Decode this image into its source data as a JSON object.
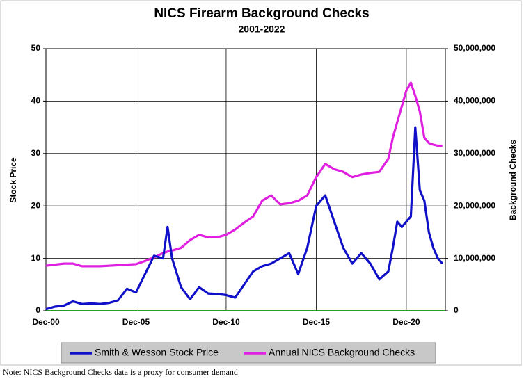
{
  "chart_data": {
    "type": "line",
    "title": "NICS Firearm Background Checks",
    "subtitle": "2001-2022",
    "y_label": "Stock Price",
    "y2_label": "Background Checks",
    "note": "Note: NICS Background Checks data is a proxy for consumer demand",
    "x": [
      "2000-12",
      "2001-06",
      "2001-12",
      "2002-06",
      "2002-12",
      "2003-06",
      "2003-12",
      "2004-06",
      "2004-12",
      "2005-06",
      "2005-12",
      "2006-06",
      "2006-12",
      "2007-06",
      "2007-09",
      "2007-12",
      "2008-06",
      "2008-12",
      "2009-06",
      "2009-12",
      "2010-06",
      "2010-12",
      "2011-06",
      "2011-12",
      "2012-06",
      "2012-12",
      "2013-06",
      "2013-12",
      "2014-06",
      "2014-12",
      "2015-06",
      "2015-12",
      "2016-06",
      "2016-12",
      "2017-06",
      "2017-12",
      "2018-06",
      "2018-12",
      "2019-06",
      "2019-12",
      "2020-03",
      "2020-06",
      "2020-09",
      "2020-12",
      "2021-03",
      "2021-06",
      "2021-09",
      "2021-12",
      "2022-03",
      "2022-06",
      "2022-09",
      "2022-12"
    ],
    "xlim": [
      "2000-12",
      "2023-02"
    ],
    "xticks": [
      {
        "value": "2000-12",
        "label": "Dec-00"
      },
      {
        "value": "2005-12",
        "label": "Dec-05"
      },
      {
        "value": "2010-12",
        "label": "Dec-10"
      },
      {
        "value": "2015-12",
        "label": "Dec-15"
      },
      {
        "value": "2020-12",
        "label": "Dec-20"
      }
    ],
    "ylim": [
      0,
      50
    ],
    "yticks": [
      0,
      10,
      20,
      30,
      40,
      50
    ],
    "y2lim": [
      0,
      50000000
    ],
    "y2ticks": [
      0,
      {
        "value": 10000000,
        "label": "10,000,000"
      },
      {
        "value": 20000000,
        "label": "20,000,000"
      },
      {
        "value": 30000000,
        "label": "30,000,000"
      },
      {
        "value": 40000000,
        "label": "40,000,000"
      },
      {
        "value": 50000000,
        "label": "50,000,000"
      }
    ],
    "grid": true,
    "legend": "bottom",
    "series": [
      {
        "name": "Smith & Wesson Stock Price",
        "color": "#1010c8",
        "values": [
          0.3,
          0.8,
          1.0,
          1.8,
          1.3,
          1.4,
          1.3,
          1.5,
          2.0,
          4.2,
          3.5,
          7,
          10.5,
          10,
          16,
          10,
          4.5,
          2.2,
          4.5,
          3.3,
          3.2,
          3.0,
          2.5,
          5,
          7.5,
          8.5,
          9,
          10,
          11,
          7,
          12,
          20,
          22,
          17,
          12,
          9,
          11,
          9,
          6,
          7.5,
          12,
          17,
          16,
          17,
          18,
          35,
          23,
          21,
          15,
          12,
          10,
          9
        ]
      },
      {
        "name": "Annual NICS Background Checks",
        "color": "#e020e0",
        "axis": "y2",
        "values": [
          8600000,
          8800000,
          9000000,
          9000000,
          8500000,
          8500000,
          8500000,
          8600000,
          8700000,
          8800000,
          8900000,
          9500000,
          10200000,
          11000000,
          11300000,
          11500000,
          12000000,
          13500000,
          14500000,
          14000000,
          14000000,
          14500000,
          15500000,
          16800000,
          18000000,
          21000000,
          22000000,
          20300000,
          20500000,
          21000000,
          22000000,
          25500000,
          28000000,
          27000000,
          26500000,
          25500000,
          26000000,
          26300000,
          26500000,
          29000000,
          33000000,
          36000000,
          39000000,
          42000000,
          43500000,
          41000000,
          38000000,
          33000000,
          32000000,
          31700000,
          31500000,
          31500000
        ]
      }
    ]
  }
}
